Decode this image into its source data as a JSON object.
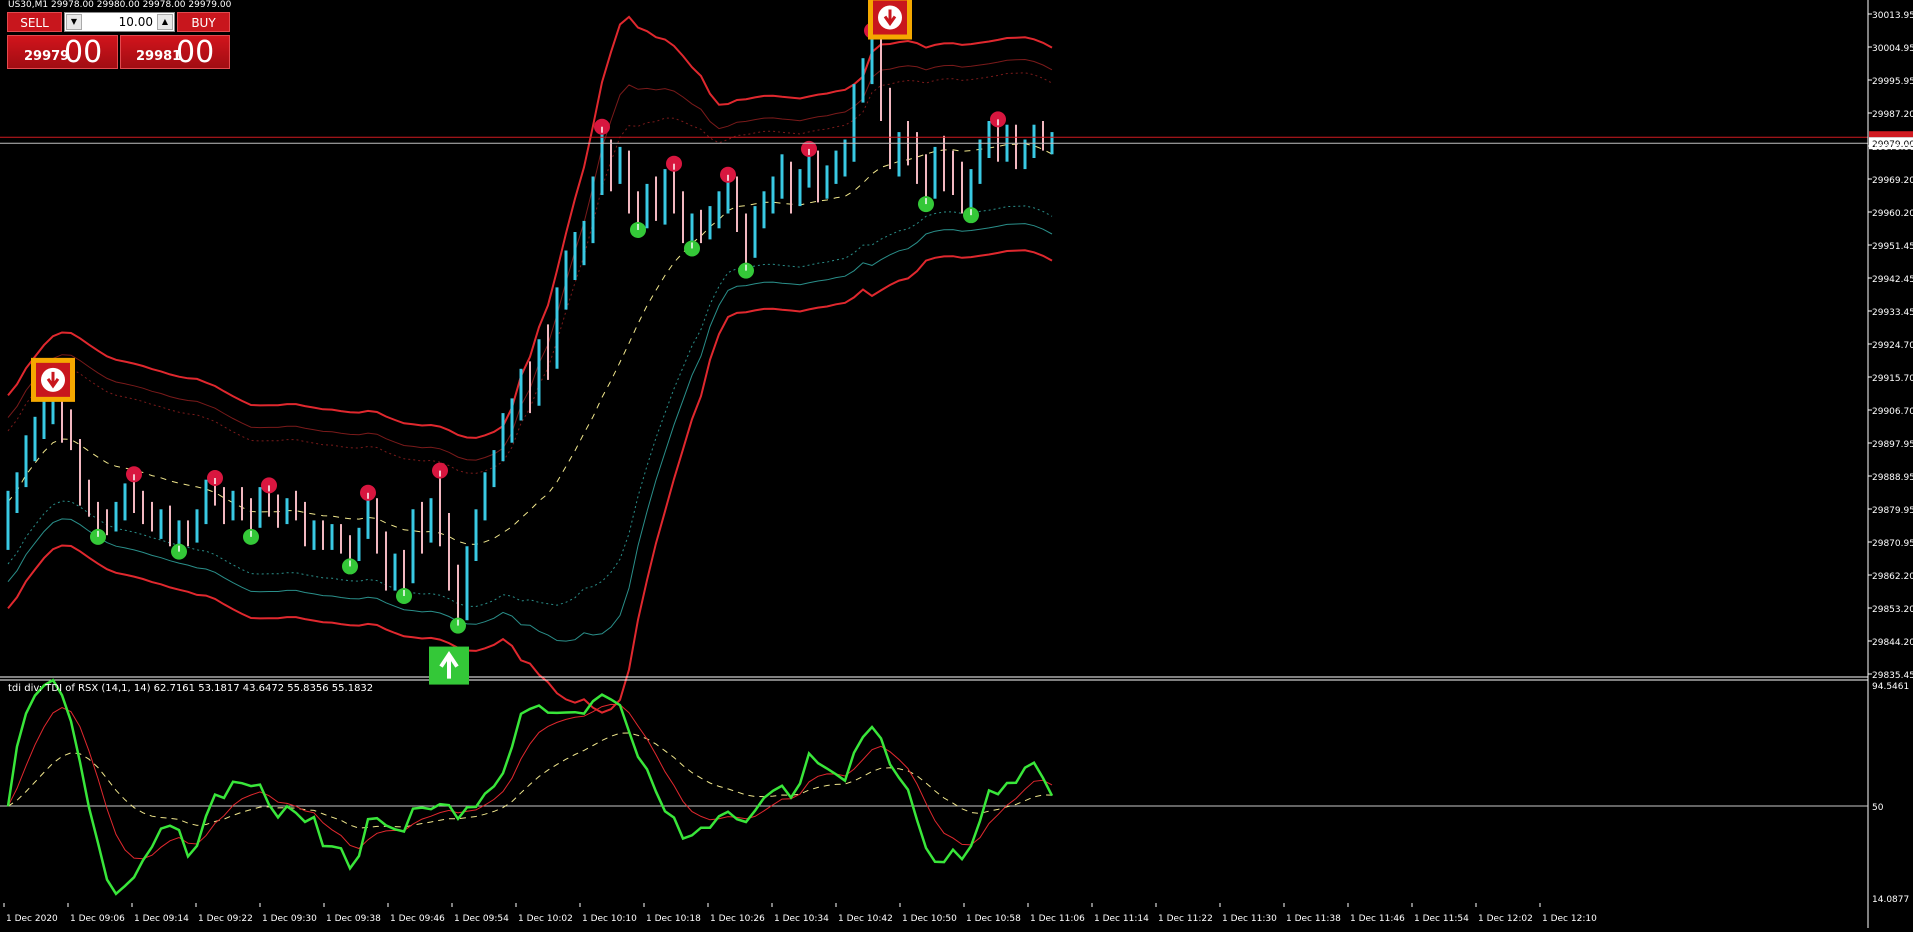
{
  "window": {
    "title": "US30,M1  29978.00 29980.00 29978.00 29979.00"
  },
  "trade_panel": {
    "sell_label": "SELL",
    "buy_label": "BUY",
    "lot_value": "10.00",
    "sell_price_small": "29979",
    "sell_price_big": "00",
    "buy_price_small": "29981",
    "buy_price_big": "00",
    "accent": "#c8161d"
  },
  "price_axis": {
    "labels": [
      "30013.95",
      "30004.95",
      "29995.95",
      "29987.20",
      "29979.00",
      "29969.20",
      "29960.20",
      "29951.45",
      "29942.45",
      "29933.45",
      "29924.70",
      "29915.70",
      "29906.70",
      "29897.95",
      "29888.95",
      "29879.95",
      "29870.95",
      "29862.20",
      "29853.20",
      "29844.20",
      "29835.45"
    ],
    "current_price": "29979.00"
  },
  "indicator": {
    "label": "tdi div: TDI of RSX  (14,1, 14) 62.7161 53.1817 43.6472 55.8356 55.1832",
    "axis_top": "94.5461",
    "axis_mid": "50",
    "axis_bottom": "14.0877"
  },
  "time_axis": {
    "labels": [
      "1 Dec 2020",
      "1 Dec 09:06",
      "1 Dec 09:14",
      "1 Dec 09:22",
      "1 Dec 09:30",
      "1 Dec 09:38",
      "1 Dec 09:46",
      "1 Dec 09:54",
      "1 Dec 10:02",
      "1 Dec 10:10",
      "1 Dec 10:18",
      "1 Dec 10:26",
      "1 Dec 10:34",
      "1 Dec 10:42",
      "1 Dec 10:50",
      "1 Dec 10:58",
      "1 Dec 11:06",
      "1 Dec 11:14",
      "1 Dec 11:22",
      "1 Dec 11:30",
      "1 Dec 11:38",
      "1 Dec 11:46",
      "1 Dec 11:54",
      "1 Dec 12:02",
      "1 Dec 12:10"
    ]
  },
  "colors": {
    "bull_bar": "#39c9e3",
    "bear_bar": "#f2b8c0",
    "band_outer": "#e0282e",
    "band_inner": "#7a1a1a",
    "mid_line": "#f0e68c",
    "lower_teal": "#2a8f8a",
    "rsi_line": "#39e63a",
    "signal_line": "#e0282e",
    "dot_red": "#d8163f",
    "dot_green": "#34c838"
  },
  "chart_data": {
    "type": "bar",
    "price_bars": [
      [
        29871,
        29885,
        29869,
        29882
      ],
      [
        29882,
        29890,
        29879,
        29888
      ],
      [
        29888,
        29900,
        29886,
        29898
      ],
      [
        29898,
        29905,
        29893,
        29902
      ],
      [
        29902,
        29911,
        29899,
        29908
      ],
      [
        29908,
        29913,
        29903,
        29910
      ],
      [
        29910,
        29912,
        29898,
        29905
      ],
      [
        29905,
        29907,
        29896,
        29898
      ],
      [
        29898,
        29899,
        29881,
        29886
      ],
      [
        29886,
        29888,
        29878,
        29880
      ],
      [
        29880,
        29882,
        29872,
        29878
      ],
      [
        29878,
        29880,
        29873,
        29876
      ],
      [
        29876,
        29882,
        29874,
        29880
      ],
      [
        29880,
        29887,
        29877,
        29885
      ],
      [
        29885,
        29890,
        29879,
        29883
      ],
      [
        29883,
        29885,
        29876,
        29880
      ],
      [
        29880,
        29882,
        29874,
        29876
      ],
      [
        29876,
        29880,
        29872,
        29878
      ],
      [
        29878,
        29881,
        29870,
        29873
      ],
      [
        29873,
        29877,
        29868,
        29875
      ],
      [
        29875,
        29877,
        29870,
        29872
      ],
      [
        29872,
        29880,
        29871,
        29878
      ],
      [
        29878,
        29888,
        29876,
        29886
      ],
      [
        29886,
        29889,
        29881,
        29884
      ],
      [
        29884,
        29886,
        29876,
        29879
      ],
      [
        29879,
        29885,
        29877,
        29883
      ],
      [
        29883,
        29886,
        29877,
        29880
      ],
      [
        29880,
        29883,
        29872,
        29876
      ],
      [
        29876,
        29886,
        29875,
        29884
      ],
      [
        29884,
        29887,
        29878,
        29881
      ],
      [
        29881,
        29884,
        29875,
        29878
      ],
      [
        29878,
        29883,
        29876,
        29882
      ],
      [
        29882,
        29885,
        29877,
        29880
      ],
      [
        29880,
        29882,
        29870,
        29874
      ],
      [
        29874,
        29877,
        29869,
        29875
      ],
      [
        29875,
        29877,
        29869,
        29871
      ],
      [
        29871,
        29876,
        29869,
        29874
      ],
      [
        29874,
        29876,
        29868,
        29870
      ],
      [
        29870,
        29873,
        29864,
        29867
      ],
      [
        29867,
        29875,
        29866,
        29873
      ],
      [
        29873,
        29885,
        29872,
        29881
      ],
      [
        29881,
        29883,
        29868,
        29872
      ],
      [
        29872,
        29874,
        29858,
        29862
      ],
      [
        29862,
        29868,
        29858,
        29865
      ],
      [
        29865,
        29869,
        29856,
        29861
      ],
      [
        29861,
        29880,
        29860,
        29878
      ],
      [
        29878,
        29882,
        29868,
        29873
      ],
      [
        29873,
        29883,
        29871,
        29879
      ],
      [
        29879,
        29891,
        29870,
        29875
      ],
      [
        29875,
        29879,
        29858,
        29862
      ],
      [
        29862,
        29865,
        29848,
        29852
      ],
      [
        29852,
        29870,
        29850,
        29868
      ],
      [
        29868,
        29880,
        29866,
        29878
      ],
      [
        29878,
        29890,
        29877,
        29888
      ],
      [
        29888,
        29896,
        29886,
        29894
      ],
      [
        29894,
        29906,
        29893,
        29902
      ],
      [
        29902,
        29910,
        29898,
        29906
      ],
      [
        29906,
        29918,
        29904,
        29916
      ],
      [
        29916,
        29920,
        29906,
        29910
      ],
      [
        29910,
        29926,
        29908,
        29923
      ],
      [
        29923,
        29930,
        29915,
        29920
      ],
      [
        29920,
        29940,
        29918,
        29936
      ],
      [
        29936,
        29950,
        29934,
        29946
      ],
      [
        29946,
        29955,
        29942,
        29950
      ],
      [
        29950,
        29958,
        29946,
        29955
      ],
      [
        29955,
        29970,
        29952,
        29967
      ],
      [
        29967,
        29984,
        29965,
        29978
      ],
      [
        29978,
        29980,
        29966,
        29970
      ],
      [
        29970,
        29978,
        29968,
        29975
      ],
      [
        29975,
        29977,
        29960,
        29964
      ],
      [
        29964,
        29966,
        29955,
        29958
      ],
      [
        29958,
        29968,
        29956,
        29965
      ],
      [
        29965,
        29970,
        29958,
        29962
      ],
      [
        29962,
        29972,
        29957,
        29968
      ],
      [
        29968,
        29974,
        29960,
        29964
      ],
      [
        29964,
        29966,
        29952,
        29955
      ],
      [
        29955,
        29960,
        29950,
        29957
      ],
      [
        29957,
        29961,
        29952,
        29955
      ],
      [
        29955,
        29962,
        29953,
        29960
      ],
      [
        29960,
        29966,
        29956,
        29963
      ],
      [
        29963,
        29971,
        29960,
        29968
      ],
      [
        29968,
        29970,
        29955,
        29958
      ],
      [
        29958,
        29960,
        29944,
        29950
      ],
      [
        29950,
        29962,
        29948,
        29960
      ],
      [
        29960,
        29966,
        29956,
        29963
      ],
      [
        29963,
        29970,
        29960,
        29968
      ],
      [
        29968,
        29976,
        29964,
        29972
      ],
      [
        29972,
        29974,
        29960,
        29966
      ],
      [
        29966,
        29972,
        29962,
        29970
      ],
      [
        29970,
        29978,
        29967,
        29975
      ],
      [
        29975,
        29977,
        29963,
        29968
      ],
      [
        29968,
        29973,
        29964,
        29971
      ],
      [
        29971,
        29977,
        29968,
        29974
      ],
      [
        29974,
        29980,
        29970,
        29976
      ],
      [
        29976,
        29995,
        29974,
        29993
      ],
      [
        29993,
        30002,
        29990,
        29998
      ],
      [
        29998,
        30010,
        29995,
        30006
      ],
      [
        30006,
        30008,
        29985,
        29990
      ],
      [
        29990,
        29994,
        29972,
        29976
      ],
      [
        29976,
        29982,
        29970,
        29980
      ],
      [
        29980,
        29985,
        29973,
        29977
      ],
      [
        29977,
        29982,
        29968,
        29972
      ],
      [
        29972,
        29976,
        29962,
        29966
      ],
      [
        29966,
        29978,
        29964,
        29975
      ],
      [
        29975,
        29981,
        29966,
        29971
      ],
      [
        29971,
        29977,
        29965,
        29969
      ],
      [
        29969,
        29974,
        29960,
        29963
      ],
      [
        29963,
        29972,
        29959,
        29970
      ],
      [
        29970,
        29980,
        29968,
        29977
      ],
      [
        29977,
        29985,
        29975,
        29982
      ],
      [
        29982,
        29986,
        29974,
        29977
      ],
      [
        29977,
        29984,
        29974,
        29981
      ],
      [
        29981,
        29984,
        29972,
        29976
      ],
      [
        29976,
        29980,
        29972,
        29978
      ],
      [
        29978,
        29984,
        29975,
        29982
      ],
      [
        29982,
        29985,
        29977,
        29979
      ],
      [
        29979,
        29982,
        29976,
        29980
      ]
    ],
    "ylim": [
      29835.45,
      30013.95
    ],
    "signals": [
      {
        "type": "arrow-down",
        "bar": 5,
        "price": 29915
      },
      {
        "type": "arrow-down",
        "bar": 98,
        "price": 30013
      },
      {
        "type": "arrow-up",
        "bar": 49,
        "price": 29838
      }
    ]
  }
}
